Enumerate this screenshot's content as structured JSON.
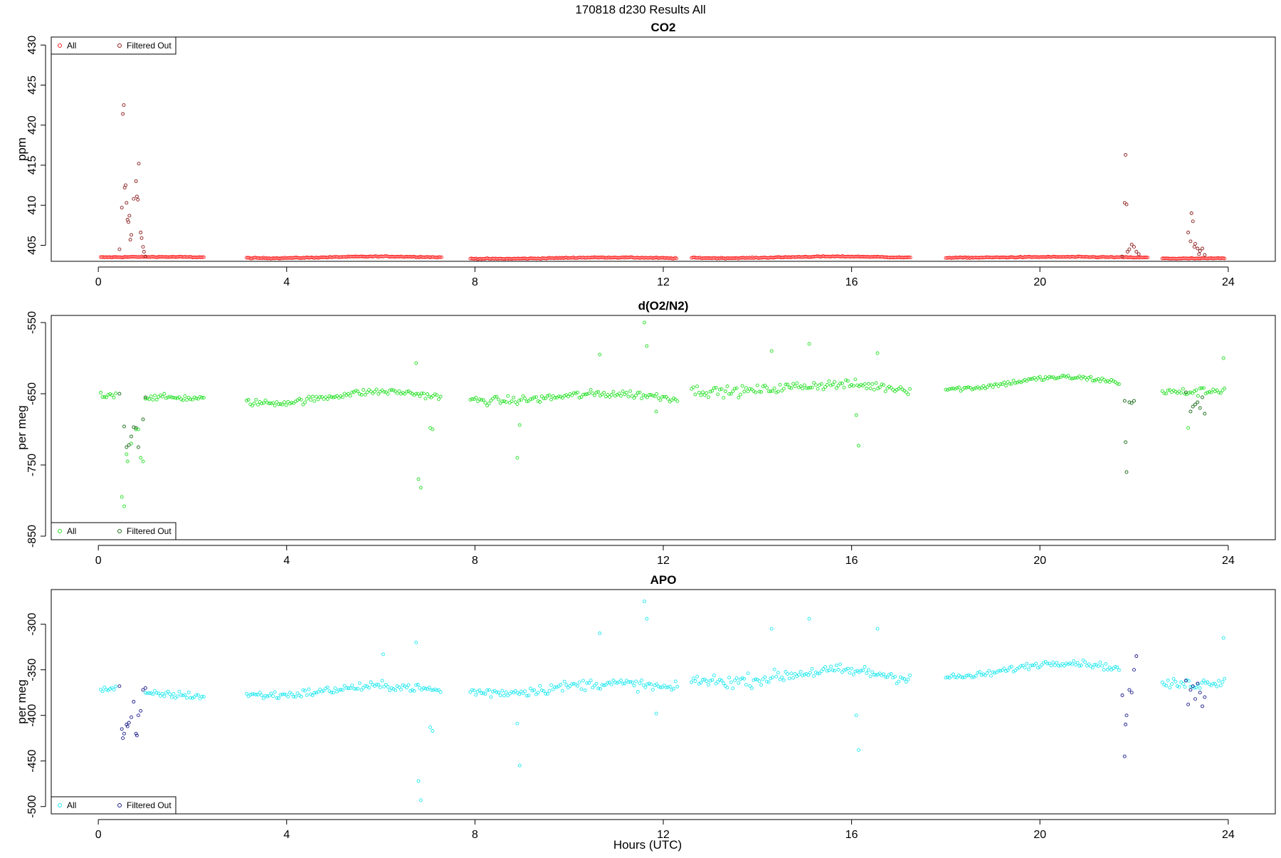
{
  "header": {
    "title": "170818   d230   Results All"
  },
  "x_axis": {
    "label": "Hours (UTC)"
  },
  "chart_data": [
    {
      "type": "scatter",
      "title": "CO2",
      "ylabel": "ppm",
      "xlim": [
        -1,
        25
      ],
      "ylim": [
        403,
        431
      ],
      "xticks": [
        0,
        4,
        8,
        12,
        16,
        20,
        24
      ],
      "yticks": [
        405,
        410,
        415,
        420,
        425,
        430
      ],
      "legend": {
        "position": "top-left",
        "entries": [
          "All",
          "Filtered Out"
        ]
      },
      "colors": {
        "all": "#ff2020",
        "filtered": "#8b1a1a"
      },
      "series": [
        {
          "name": "All",
          "segments": [
            {
              "start": 0.05,
              "end": 2.25,
              "step": 0.03,
              "base": 403.5,
              "amp": 0.05,
              "noise": 0.1
            },
            {
              "start": 3.15,
              "end": 7.3,
              "step": 0.03,
              "base": 403.5,
              "amp": 0.1,
              "noise": 0.1
            },
            {
              "start": 7.9,
              "end": 12.3,
              "step": 0.03,
              "base": 403.4,
              "amp": 0.08,
              "noise": 0.1
            },
            {
              "start": 12.6,
              "end": 17.25,
              "step": 0.03,
              "base": 403.5,
              "amp": 0.1,
              "noise": 0.1
            },
            {
              "start": 18.0,
              "end": 22.3,
              "step": 0.03,
              "base": 403.5,
              "amp": 0.05,
              "noise": 0.1
            },
            {
              "start": 22.6,
              "end": 23.95,
              "step": 0.03,
              "base": 403.4,
              "amp": 0.05,
              "noise": 0.1
            }
          ]
        },
        {
          "name": "Filtered Out",
          "points": [
            [
              0.45,
              404.5
            ],
            [
              0.5,
              409.7
            ],
            [
              0.52,
              421.4
            ],
            [
              0.54,
              422.5
            ],
            [
              0.56,
              412.2
            ],
            [
              0.58,
              412.5
            ],
            [
              0.6,
              410.3
            ],
            [
              0.62,
              408.2
            ],
            [
              0.64,
              407.9
            ],
            [
              0.66,
              408.7
            ],
            [
              0.68,
              405.7
            ],
            [
              0.7,
              406.3
            ],
            [
              0.75,
              410.8
            ],
            [
              0.8,
              413.0
            ],
            [
              0.82,
              411.1
            ],
            [
              0.84,
              410.7
            ],
            [
              0.86,
              415.2
            ],
            [
              0.9,
              406.6
            ],
            [
              0.92,
              405.9
            ],
            [
              0.95,
              404.8
            ],
            [
              0.97,
              404.2
            ],
            [
              1.0,
              403.6
            ],
            [
              21.75,
              403.6
            ],
            [
              21.8,
              410.3
            ],
            [
              21.82,
              416.3
            ],
            [
              21.84,
              410.1
            ],
            [
              21.86,
              404.2
            ],
            [
              21.9,
              404.5
            ],
            [
              21.95,
              405.1
            ],
            [
              22.0,
              404.8
            ],
            [
              22.05,
              404.2
            ],
            [
              22.1,
              403.9
            ],
            [
              23.15,
              406.6
            ],
            [
              23.2,
              405.5
            ],
            [
              23.22,
              409.0
            ],
            [
              23.25,
              408.0
            ],
            [
              23.28,
              404.8
            ],
            [
              23.3,
              405.2
            ],
            [
              23.35,
              404.6
            ],
            [
              23.38,
              403.9
            ],
            [
              23.4,
              404.3
            ],
            [
              23.45,
              404.6
            ],
            [
              23.5,
              403.8
            ]
          ]
        }
      ]
    },
    {
      "type": "scatter",
      "title": "d(O2/N2)",
      "ylabel": "per meg",
      "xlim": [
        -1,
        25
      ],
      "ylim": [
        -855,
        -540
      ],
      "xticks": [
        0,
        4,
        8,
        12,
        16,
        20,
        24
      ],
      "yticks": [
        -850,
        -750,
        -650,
        -550
      ],
      "legend": {
        "position": "bottom-left",
        "entries": [
          "All",
          "Filtered Out"
        ]
      },
      "colors": {
        "all": "#28e028",
        "filtered": "#1a6b1a"
      },
      "series": [
        {
          "name": "All",
          "segments": [
            {
              "start": 0.05,
              "end": 0.4,
              "step": 0.04,
              "base": -652,
              "amp": 3,
              "noise": 8
            },
            {
              "start": 1.0,
              "end": 2.25,
              "step": 0.04,
              "base": -658,
              "amp": 3,
              "noise": 7
            },
            {
              "start": 3.15,
              "end": 7.3,
              "step": 0.04,
              "base": -655,
              "amp": 8,
              "noise": 8
            },
            {
              "start": 7.9,
              "end": 12.3,
              "step": 0.04,
              "base": -655,
              "amp": 5,
              "noise": 10
            },
            {
              "start": 12.6,
              "end": 17.25,
              "step": 0.04,
              "base": -642,
              "amp": 5,
              "noise": 12
            },
            {
              "start": 18.0,
              "end": 21.7,
              "step": 0.04,
              "base": -635,
              "amp": 8,
              "noise": 6
            },
            {
              "start": 22.6,
              "end": 23.95,
              "step": 0.04,
              "base": -642,
              "amp": 6,
              "noise": 10
            }
          ],
          "points": [
            [
              0.5,
              -795
            ],
            [
              0.55,
              -808
            ],
            [
              0.6,
              -735
            ],
            [
              0.62,
              -745
            ],
            [
              0.7,
              -720
            ],
            [
              0.8,
              -700
            ],
            [
              0.85,
              -700
            ],
            [
              0.9,
              -740
            ],
            [
              0.95,
              -745
            ],
            [
              6.75,
              -607
            ],
            [
              6.8,
              -770
            ],
            [
              6.85,
              -782
            ],
            [
              7.05,
              -698
            ],
            [
              7.1,
              -700
            ],
            [
              8.95,
              -694
            ],
            [
              8.9,
              -740
            ],
            [
              10.65,
              -595
            ],
            [
              11.6,
              -550
            ],
            [
              11.65,
              -583
            ],
            [
              11.85,
              -675
            ],
            [
              14.3,
              -590
            ],
            [
              15.1,
              -580
            ],
            [
              16.1,
              -680
            ],
            [
              16.15,
              -723
            ],
            [
              16.55,
              -593
            ],
            [
              23.15,
              -698
            ],
            [
              23.9,
              -600
            ]
          ]
        },
        {
          "name": "Filtered Out",
          "points": [
            [
              0.45,
              -650
            ],
            [
              0.55,
              -696
            ],
            [
              0.6,
              -725
            ],
            [
              0.65,
              -722
            ],
            [
              0.7,
              -710
            ],
            [
              0.75,
              -697
            ],
            [
              0.8,
              -698
            ],
            [
              0.85,
              -725
            ],
            [
              0.95,
              -686
            ],
            [
              1.0,
              -655
            ],
            [
              21.8,
              -660
            ],
            [
              21.82,
              -718
            ],
            [
              21.84,
              -760
            ],
            [
              21.9,
              -662
            ],
            [
              21.95,
              -663
            ],
            [
              22.0,
              -660
            ],
            [
              23.1,
              -648
            ],
            [
              23.2,
              -675
            ],
            [
              23.25,
              -668
            ],
            [
              23.3,
              -665
            ],
            [
              23.35,
              -662
            ],
            [
              23.4,
              -670
            ],
            [
              23.45,
              -655
            ],
            [
              23.5,
              -678
            ]
          ]
        }
      ]
    },
    {
      "type": "scatter",
      "title": "APO",
      "ylabel": "per meg",
      "xlim": [
        -1,
        25
      ],
      "ylim": [
        -508,
        -262
      ],
      "xticks": [
        0,
        4,
        8,
        12,
        16,
        20,
        24
      ],
      "yticks": [
        -500,
        -450,
        -400,
        -350,
        -300
      ],
      "legend": {
        "position": "bottom-left",
        "entries": [
          "All",
          "Filtered Out"
        ]
      },
      "colors": {
        "all": "#20e8f0",
        "filtered": "#1a1a8b"
      },
      "series": [
        {
          "name": "All",
          "segments": [
            {
              "start": 0.05,
              "end": 0.4,
              "step": 0.04,
              "base": -372,
              "amp": 3,
              "noise": 6
            },
            {
              "start": 1.0,
              "end": 2.25,
              "step": 0.04,
              "base": -380,
              "amp": 3,
              "noise": 7
            },
            {
              "start": 3.15,
              "end": 7.3,
              "step": 0.04,
              "base": -373,
              "amp": 5,
              "noise": 8
            },
            {
              "start": 7.9,
              "end": 12.3,
              "step": 0.04,
              "base": -370,
              "amp": 5,
              "noise": 10
            },
            {
              "start": 12.6,
              "end": 17.25,
              "step": 0.04,
              "base": -357,
              "amp": 6,
              "noise": 12
            },
            {
              "start": 18.0,
              "end": 21.7,
              "step": 0.04,
              "base": -350,
              "amp": 8,
              "noise": 6
            },
            {
              "start": 22.6,
              "end": 23.95,
              "step": 0.04,
              "base": -360,
              "amp": 6,
              "noise": 10
            }
          ],
          "points": [
            [
              6.05,
              -333
            ],
            [
              6.75,
              -320
            ],
            [
              6.8,
              -472
            ],
            [
              6.85,
              -493
            ],
            [
              7.05,
              -413
            ],
            [
              7.1,
              -417
            ],
            [
              8.9,
              -409
            ],
            [
              8.95,
              -455
            ],
            [
              10.65,
              -310
            ],
            [
              11.6,
              -275
            ],
            [
              11.65,
              -294
            ],
            [
              11.85,
              -398
            ],
            [
              14.3,
              -305
            ],
            [
              15.1,
              -294
            ],
            [
              16.1,
              -400
            ],
            [
              16.15,
              -438
            ],
            [
              16.55,
              -305
            ],
            [
              23.9,
              -315
            ]
          ]
        },
        {
          "name": "Filtered Out",
          "points": [
            [
              0.45,
              -368
            ],
            [
              0.5,
              -415
            ],
            [
              0.52,
              -425
            ],
            [
              0.55,
              -420
            ],
            [
              0.6,
              -410
            ],
            [
              0.62,
              -412
            ],
            [
              0.65,
              -408
            ],
            [
              0.7,
              -402
            ],
            [
              0.75,
              -385
            ],
            [
              0.8,
              -420
            ],
            [
              0.82,
              -422
            ],
            [
              0.85,
              -400
            ],
            [
              0.9,
              -395
            ],
            [
              0.95,
              -372
            ],
            [
              1.0,
              -370
            ],
            [
              21.75,
              -378
            ],
            [
              21.8,
              -445
            ],
            [
              21.82,
              -410
            ],
            [
              21.84,
              -400
            ],
            [
              21.9,
              -372
            ],
            [
              21.95,
              -375
            ],
            [
              22.0,
              -350
            ],
            [
              22.05,
              -335
            ],
            [
              23.1,
              -362
            ],
            [
              23.15,
              -388
            ],
            [
              23.2,
              -372
            ],
            [
              23.25,
              -368
            ],
            [
              23.3,
              -382
            ],
            [
              23.35,
              -365
            ],
            [
              23.4,
              -375
            ],
            [
              23.45,
              -390
            ],
            [
              23.5,
              -380
            ]
          ]
        }
      ]
    }
  ]
}
